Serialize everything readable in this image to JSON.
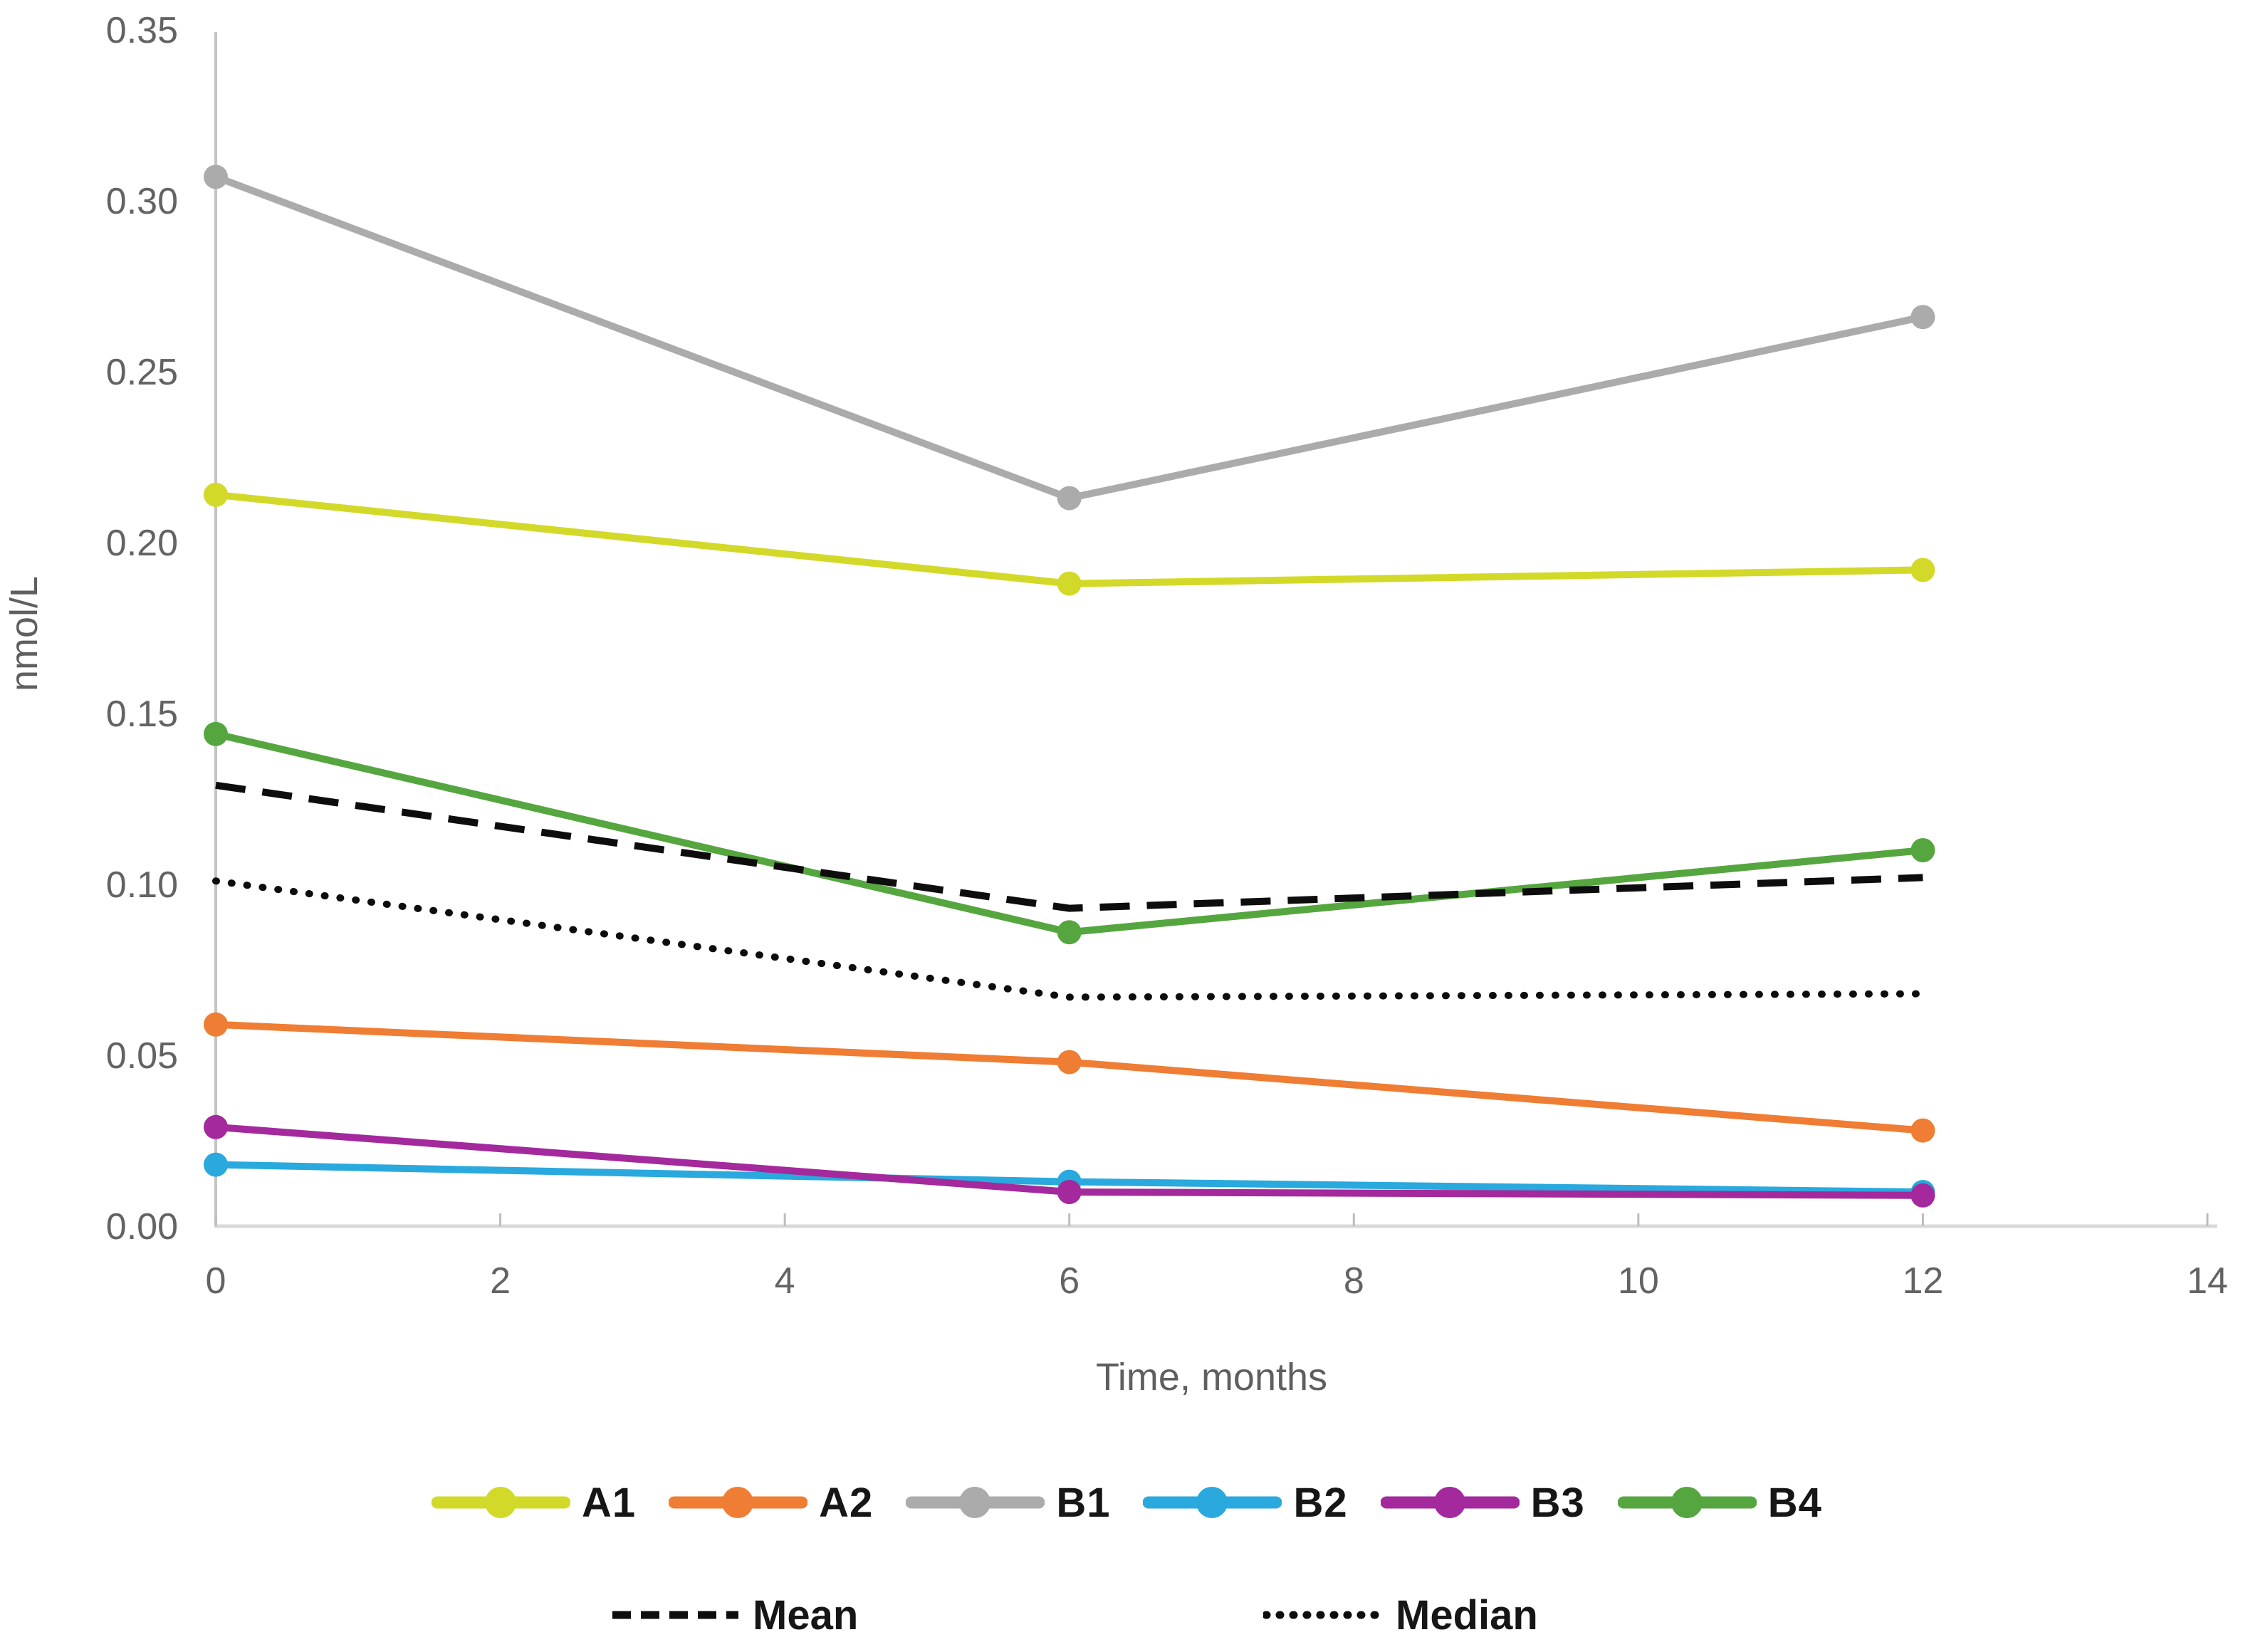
{
  "chart_data": {
    "type": "line",
    "title": "",
    "xlabel": "Time, months",
    "ylabel": "nmol/L",
    "x": [
      0,
      6,
      12
    ],
    "x_ticks": [
      0,
      2,
      4,
      6,
      8,
      10,
      12,
      14
    ],
    "y_ticks": [
      "0.00",
      "0.05",
      "0.10",
      "0.15",
      "0.20",
      "0.25",
      "0.30",
      "0.35"
    ],
    "y_tick_values": [
      0.0,
      0.05,
      0.1,
      0.15,
      0.2,
      0.25,
      0.3,
      0.35
    ],
    "xlim": [
      0,
      14
    ],
    "ylim": [
      0.0,
      0.35
    ],
    "grid": false,
    "legend_position": "bottom",
    "series": [
      {
        "name": "A1",
        "color": "#d3d928",
        "style": "solid",
        "marker": "circle",
        "values": [
          0.214,
          0.188,
          0.192
        ]
      },
      {
        "name": "A2",
        "color": "#ef7d33",
        "style": "solid",
        "marker": "circle",
        "values": [
          0.059,
          0.048,
          0.028
        ]
      },
      {
        "name": "B1",
        "color": "#ababab",
        "style": "solid",
        "marker": "circle",
        "values": [
          0.307,
          0.213,
          0.266
        ]
      },
      {
        "name": "B2",
        "color": "#29a9dd",
        "style": "solid",
        "marker": "circle",
        "values": [
          0.018,
          0.013,
          0.01
        ]
      },
      {
        "name": "B3",
        "color": "#a3299d",
        "style": "solid",
        "marker": "circle",
        "values": [
          0.029,
          0.01,
          0.009
        ]
      },
      {
        "name": "B4",
        "color": "#55a63f",
        "style": "solid",
        "marker": "circle",
        "values": [
          0.144,
          0.086,
          0.11
        ]
      },
      {
        "name": "Mean",
        "color": "#0d0d0d",
        "style": "dashed",
        "marker": "none",
        "values": [
          0.129,
          0.093,
          0.102
        ]
      },
      {
        "name": "Median",
        "color": "#0d0d0d",
        "style": "dotted",
        "marker": "none",
        "values": [
          0.101,
          0.067,
          0.068
        ]
      }
    ],
    "axis_colors": {
      "y_axis_line": "#c3c3c3",
      "x_axis_line": "#d9d9d9",
      "tick_mark": "#bdbdbd",
      "tick_label": "#636363"
    }
  }
}
